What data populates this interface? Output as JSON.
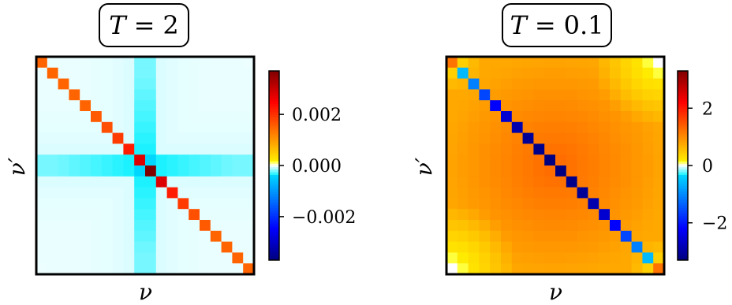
{
  "chart_data": [
    {
      "type": "heatmap",
      "title": "T = 2",
      "xlabel": "ν",
      "ylabel": "ν′",
      "matrix_size": 20,
      "pattern": "strong diagonal, bright cross at the center, near-zero elsewhere",
      "colorbar": {
        "vmin": -0.0037,
        "vmax": 0.0037,
        "ticks": [
          -0.002,
          0.0,
          0.002
        ],
        "tick_labels": [
          "−0.002",
          "0.000",
          "0.002"
        ]
      },
      "diagonal_values": [
        0.0015,
        0.0015,
        0.0015,
        0.0015,
        0.0015,
        0.0016,
        0.0017,
        0.0019,
        0.0022,
        0.0028,
        0.0037,
        0.0028,
        0.0022,
        0.0019,
        0.0017,
        0.0016,
        0.0015,
        0.0015,
        0.0015,
        0.0015
      ],
      "cross_value": -0.0004,
      "background_value": -5e-05
    },
    {
      "type": "heatmap",
      "title": "T = 0.1",
      "xlabel": "ν",
      "ylabel": "ν′",
      "matrix_size": 20,
      "pattern": "negative diagonal, broad positive background peaking at the center",
      "colorbar": {
        "vmin": -3.3,
        "vmax": 3.3,
        "ticks": [
          -2,
          0,
          2
        ],
        "tick_labels": [
          "−2",
          "0",
          "2"
        ]
      },
      "diagonal_values": [
        1.2,
        -0.6,
        -1.1,
        -1.6,
        -2.2,
        -2.6,
        -2.9,
        -3.1,
        -3.2,
        -3.3,
        -3.3,
        -3.2,
        -3.1,
        -2.9,
        -2.6,
        -2.2,
        -1.6,
        -1.1,
        -0.6,
        1.2
      ],
      "background_center": 1.3,
      "background_edge": 0.75,
      "corner_value": 0.0
    }
  ]
}
